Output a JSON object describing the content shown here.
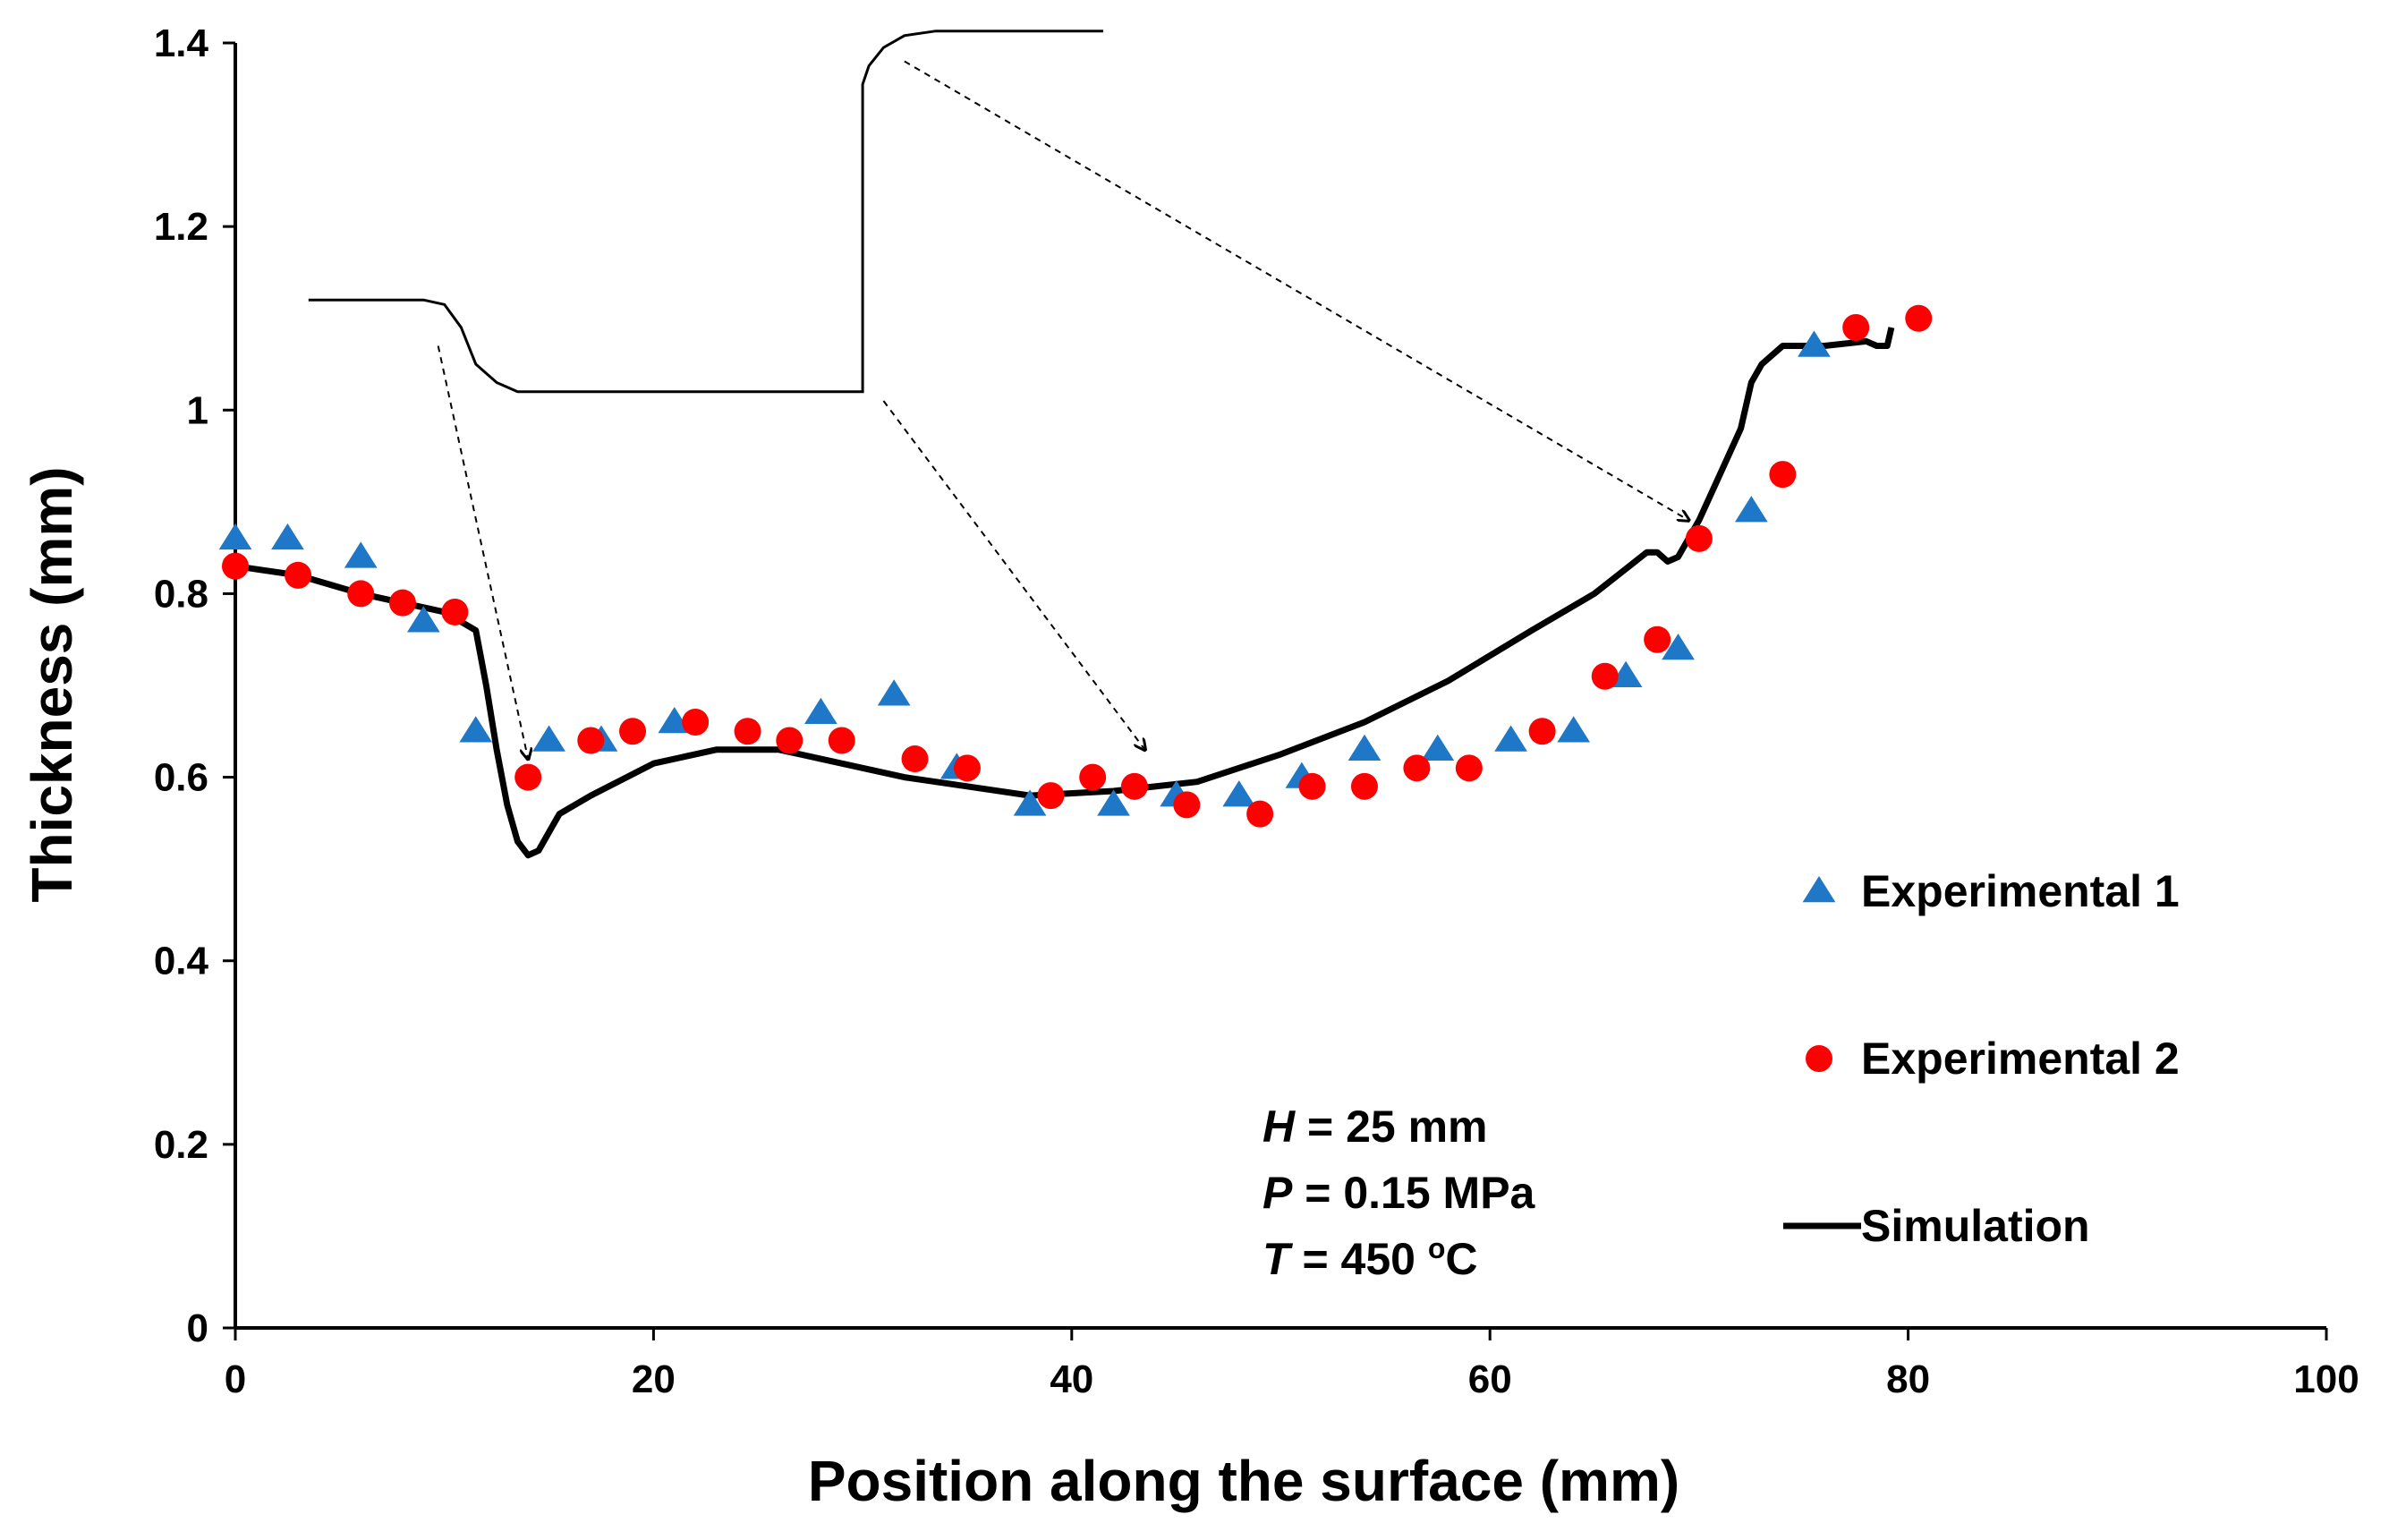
{
  "chart_data": {
    "type": "scatter",
    "xlabel": "Position along the surface (mm)",
    "ylabel": "Thickness (mm)",
    "xlim": [
      0,
      100
    ],
    "ylim": [
      0,
      1.4
    ],
    "xticks": [
      "0",
      "20",
      "40",
      "60",
      "80",
      "100"
    ],
    "yticks": [
      "0",
      "0.2",
      "0.4",
      "0.6",
      "0.8",
      "1",
      "1.2",
      "1.4"
    ],
    "grid": false,
    "legend_position": "right",
    "colors": {
      "exp1": "#1f77c8",
      "exp2": "#ff0000",
      "sim": "#000000"
    },
    "series": [
      {
        "name": "Experimental 1",
        "marker": "triangle",
        "x": [
          0,
          2.5,
          6,
          9,
          11.5,
          15,
          17.5,
          21,
          28,
          31.5,
          34.5,
          38,
          42,
          45,
          48,
          51,
          54,
          57.5,
          61,
          64,
          66.5,
          69,
          72.5,
          75.5
        ],
        "y": [
          0.86,
          0.86,
          0.84,
          0.77,
          0.65,
          0.64,
          0.64,
          0.66,
          0.67,
          0.69,
          0.61,
          0.57,
          0.57,
          0.58,
          0.58,
          0.6,
          0.63,
          0.63,
          0.64,
          0.65,
          0.71,
          0.74,
          0.89,
          1.07
        ]
      },
      {
        "name": "Experimental 2",
        "marker": "circle",
        "x": [
          0,
          3,
          6,
          8,
          10.5,
          14,
          17,
          19,
          22,
          24.5,
          26.5,
          29,
          32.5,
          35,
          39,
          41,
          43,
          45.5,
          49,
          51.5,
          54,
          56.5,
          59,
          62.5,
          65.5,
          68,
          70,
          74,
          77.5,
          80.5
        ],
        "y": [
          0.83,
          0.82,
          0.8,
          0.79,
          0.78,
          0.6,
          0.64,
          0.65,
          0.66,
          0.65,
          0.64,
          0.64,
          0.62,
          0.61,
          0.58,
          0.6,
          0.59,
          0.57,
          0.56,
          0.59,
          0.59,
          0.61,
          0.61,
          0.65,
          0.71,
          0.75,
          0.86,
          0.93,
          1.09,
          1.1
        ]
      },
      {
        "name": "Simulation",
        "marker": "line",
        "x": [
          0,
          3,
          6,
          8,
          10,
          11.5,
          12,
          12.5,
          13,
          13.5,
          14,
          14.5,
          15,
          15.5,
          17,
          20,
          23,
          26,
          29,
          32,
          35,
          38,
          42,
          46,
          50,
          54,
          58,
          62,
          65,
          67.5,
          68,
          68.5,
          69,
          70,
          71,
          72,
          72.5,
          73,
          74,
          76,
          78,
          78.5,
          79,
          79.2
        ],
        "y": [
          0.83,
          0.82,
          0.8,
          0.79,
          0.78,
          0.76,
          0.7,
          0.63,
          0.57,
          0.53,
          0.515,
          0.52,
          0.54,
          0.56,
          0.58,
          0.615,
          0.63,
          0.63,
          0.615,
          0.6,
          0.59,
          0.58,
          0.585,
          0.595,
          0.625,
          0.66,
          0.705,
          0.76,
          0.8,
          0.845,
          0.845,
          0.835,
          0.84,
          0.88,
          0.93,
          0.98,
          1.03,
          1.05,
          1.07,
          1.07,
          1.075,
          1.07,
          1.07,
          1.09
        ]
      }
    ],
    "inset": {
      "profile_x": [
        3.5,
        9,
        10,
        10.8,
        11.5,
        12.5,
        13.5,
        25,
        30,
        30,
        30.3,
        31,
        32,
        33.5,
        37,
        41.5
      ],
      "profile_y": [
        1.12,
        1.12,
        1.115,
        1.09,
        1.05,
        1.03,
        1.02,
        1.02,
        1.02,
        1.355,
        1.375,
        1.395,
        1.408,
        1.413,
        1.413,
        1.413
      ],
      "arrows": [
        {
          "from": [
            9.7,
            1.07
          ],
          "to": [
            14,
            0.62
          ]
        },
        {
          "from": [
            31,
            1.01
          ],
          "to": [
            43.5,
            0.63
          ]
        },
        {
          "from": [
            32,
            1.38
          ],
          "to": [
            69.5,
            0.88
          ]
        }
      ]
    },
    "annotations": [
      {
        "label": "H",
        "value": " = 25 mm"
      },
      {
        "label": "P",
        "value": " = 0.15 MPa"
      },
      {
        "label": "T",
        "value": " = 450 ",
        "unit_sup": "o",
        "unit": "C"
      }
    ]
  }
}
